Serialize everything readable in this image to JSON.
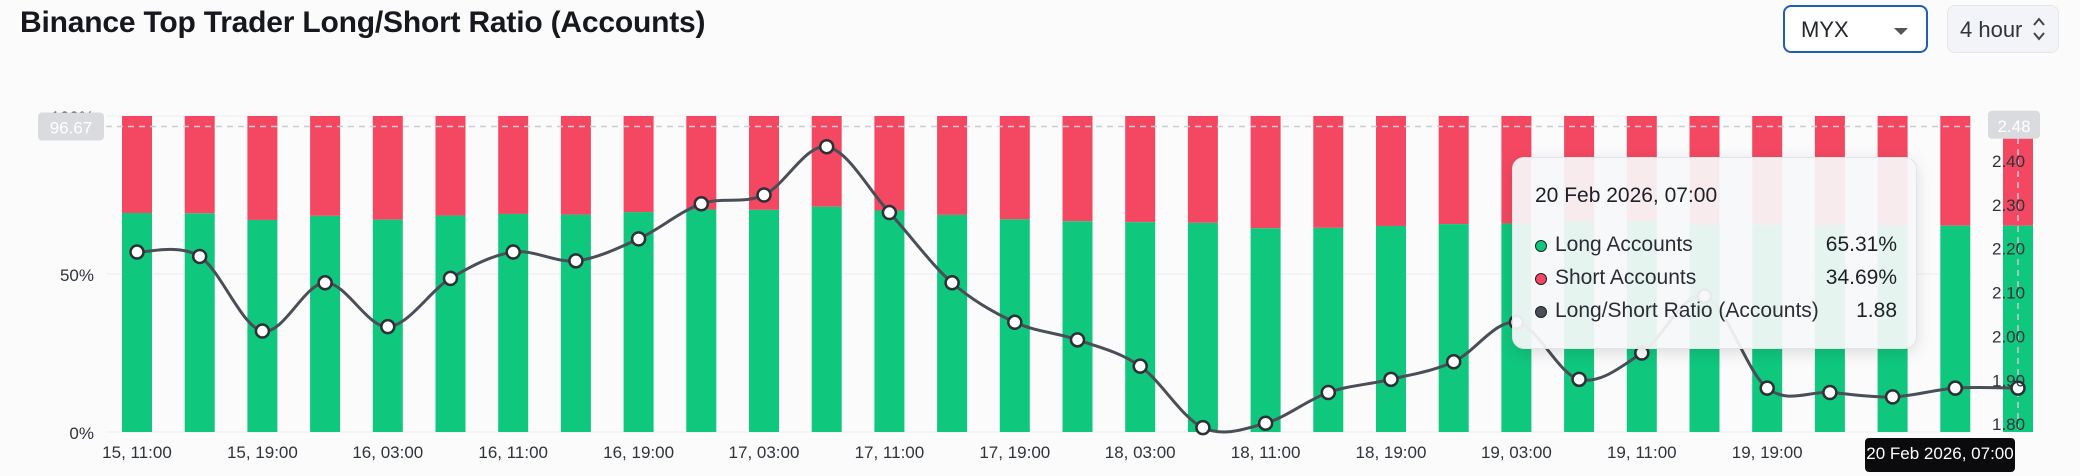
{
  "header": {
    "title": "Binance Top Trader Long/Short Ratio (Accounts)",
    "symbol_select": "MYX",
    "interval_select": "4 hour"
  },
  "colors": {
    "long": "#10c77e",
    "short": "#f44862",
    "ratio_line": "#4a4e57",
    "select_border": "#1f5fb4"
  },
  "icons": {
    "symbol_select": "chevron-down-icon",
    "interval_select": "up-down-arrows-icon"
  },
  "chart_data": {
    "type": "bar",
    "title": "Binance Top Trader Long/Short Ratio (Accounts)",
    "stacked": true,
    "x_tick_labels": [
      "15, 11:00",
      "15, 19:00",
      "16, 03:00",
      "16, 11:00",
      "16, 19:00",
      "17, 03:00",
      "17, 11:00",
      "17, 19:00",
      "18, 03:00",
      "18, 11:00",
      "18, 19:00",
      "19, 03:00",
      "19, 11:00",
      "19, 19:00",
      "20 Feb 2026, 07:00"
    ],
    "y_left": {
      "ticks": [
        "0%",
        "50%",
        "100%"
      ],
      "range": [
        0,
        100
      ]
    },
    "y_right": {
      "ticks": [
        "1.80",
        "1.90",
        "2.00",
        "2.10",
        "2.20",
        "2.30",
        "2.40",
        "2.50"
      ],
      "range": [
        1.78,
        2.5
      ]
    },
    "crosshair": {
      "left_value": "96.67",
      "right_value": "2.48",
      "x_label": "20 Feb 2026, 07:00"
    },
    "series": [
      {
        "name": "Long Accounts",
        "axis": "left",
        "type": "bar",
        "values": [
          69.3,
          69.2,
          67.1,
          68.4,
          67.2,
          68.5,
          69.0,
          68.8,
          69.6,
          70.4,
          70.3,
          71.3,
          70.1,
          68.7,
          67.3,
          66.7,
          66.4,
          66.2,
          64.5,
          64.6,
          65.2,
          65.8,
          66.0,
          66.6,
          66.7,
          65.5,
          65.6,
          65.4,
          65.3,
          65.3,
          65.3
        ]
      },
      {
        "name": "Short Accounts",
        "axis": "left",
        "type": "bar",
        "values": [
          30.7,
          30.8,
          32.9,
          31.6,
          32.8,
          31.5,
          31.0,
          31.2,
          30.4,
          29.6,
          29.7,
          28.7,
          29.9,
          31.3,
          32.7,
          33.3,
          33.6,
          33.8,
          35.5,
          35.4,
          34.8,
          34.2,
          34.0,
          33.4,
          33.3,
          34.5,
          34.4,
          34.6,
          34.7,
          34.7,
          34.7
        ]
      },
      {
        "name": "Long/Short Ratio (Accounts)",
        "axis": "right",
        "type": "line",
        "values": [
          2.19,
          2.18,
          2.01,
          2.12,
          2.02,
          2.13,
          2.19,
          2.17,
          2.22,
          2.3,
          2.32,
          2.43,
          2.28,
          2.12,
          2.03,
          1.99,
          1.93,
          1.79,
          1.8,
          1.87,
          1.9,
          1.94,
          2.03,
          1.9,
          1.96,
          2.09,
          1.88,
          1.87,
          1.86,
          1.88,
          1.88
        ]
      }
    ],
    "legend_placement": "tooltip",
    "grid": true
  },
  "tooltip": {
    "title": "20 Feb 2026, 07:00",
    "rows": [
      {
        "label": "Long Accounts",
        "value": "65.31%"
      },
      {
        "label": "Short Accounts",
        "value": "34.69%"
      },
      {
        "label": "Long/Short Ratio (Accounts)",
        "value": "1.88"
      }
    ]
  }
}
